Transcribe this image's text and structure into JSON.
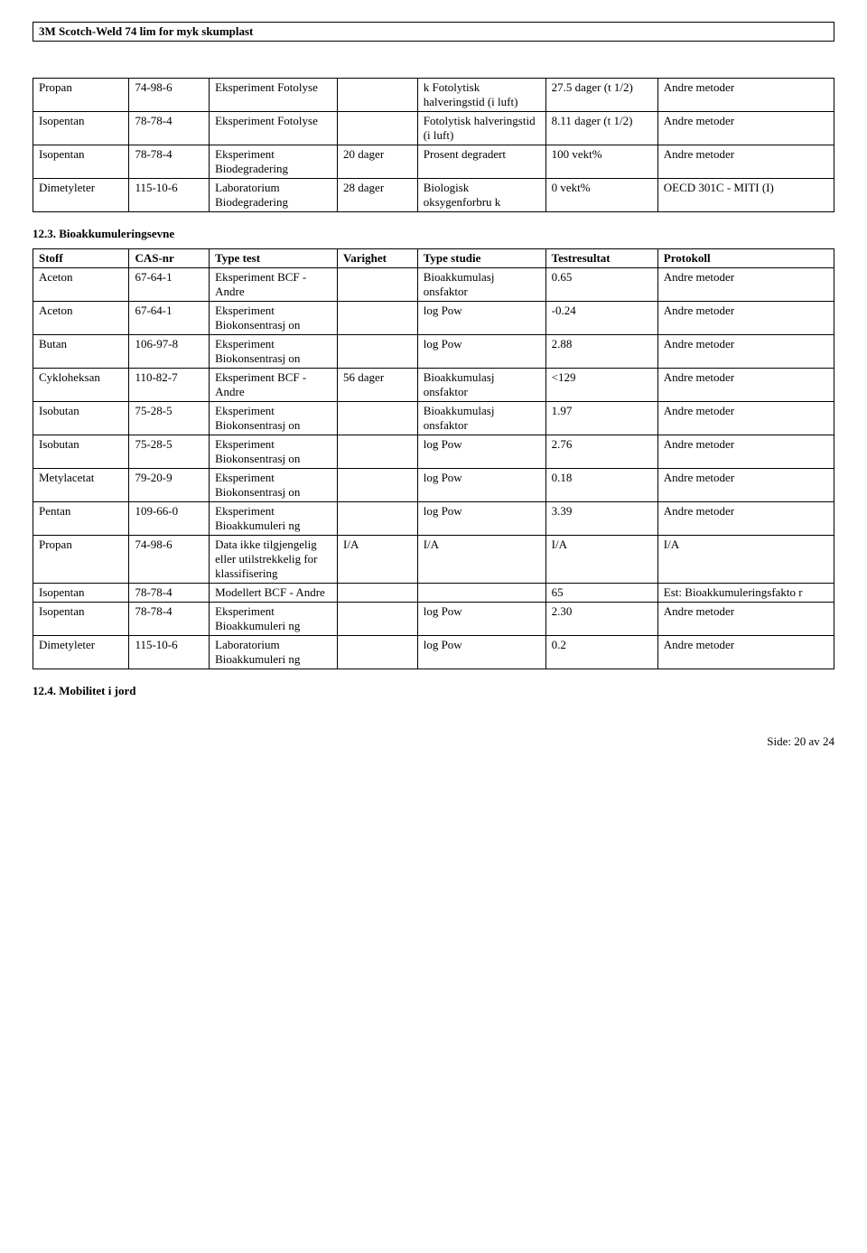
{
  "docTitle": "3M Scotch-Weld 74 lim for myk skumplast",
  "table1": {
    "rows": [
      {
        "stoff": "Propan",
        "cas": "74-98-6",
        "type": "Eksperiment Fotolyse",
        "varighet": "",
        "studie": "k\nFotolytisk halveringstid (i luft)",
        "result": "27.5 dager (t 1/2)",
        "protokoll": "Andre metoder"
      },
      {
        "stoff": "Isopentan",
        "cas": "78-78-4",
        "type": "Eksperiment Fotolyse",
        "varighet": "",
        "studie": "Fotolytisk halveringstid (i luft)",
        "result": "8.11 dager (t 1/2)",
        "protokoll": "Andre metoder"
      },
      {
        "stoff": "Isopentan",
        "cas": "78-78-4",
        "type": "Eksperiment Biodegradering",
        "varighet": "20 dager",
        "studie": "Prosent degradert",
        "result": "100 vekt%",
        "protokoll": "Andre metoder"
      },
      {
        "stoff": "Dimetyleter",
        "cas": "115-10-6",
        "type": "Laboratorium Biodegradering",
        "varighet": "28 dager",
        "studie": "Biologisk oksygenforbru k",
        "result": "0 vekt%",
        "protokoll": "OECD 301C - MITI (I)"
      }
    ]
  },
  "section123": "12.3. Bioakkumuleringsevne",
  "table2": {
    "headers": {
      "stoff": "Stoff",
      "cas": "CAS-nr",
      "type": "Type test",
      "varighet": "Varighet",
      "studie": "Type studie",
      "result": "Testresultat",
      "protokoll": "Protokoll"
    },
    "rows": [
      {
        "stoff": "Aceton",
        "cas": "67-64-1",
        "type": "Eksperiment BCF - Andre",
        "varighet": "",
        "studie": "Bioakkumulasj onsfaktor",
        "result": "0.65",
        "protokoll": "Andre metoder"
      },
      {
        "stoff": "Aceton",
        "cas": "67-64-1",
        "type": "Eksperiment Biokonsentrasj on",
        "varighet": "",
        "studie": "log Pow",
        "result": "-0.24",
        "protokoll": "Andre metoder"
      },
      {
        "stoff": "Butan",
        "cas": "106-97-8",
        "type": "Eksperiment Biokonsentrasj on",
        "varighet": "",
        "studie": "log Pow",
        "result": "2.88",
        "protokoll": "Andre metoder"
      },
      {
        "stoff": "Cykloheksan",
        "cas": "110-82-7",
        "type": "Eksperiment BCF - Andre",
        "varighet": "56 dager",
        "studie": "Bioakkumulasj onsfaktor",
        "result": "<129",
        "protokoll": "Andre metoder"
      },
      {
        "stoff": "Isobutan",
        "cas": "75-28-5",
        "type": "Eksperiment Biokonsentrasj on",
        "varighet": "",
        "studie": "Bioakkumulasj onsfaktor",
        "result": "1.97",
        "protokoll": "Andre metoder"
      },
      {
        "stoff": "Isobutan",
        "cas": "75-28-5",
        "type": "Eksperiment Biokonsentrasj on",
        "varighet": "",
        "studie": "log Pow",
        "result": "2.76",
        "protokoll": "Andre metoder"
      },
      {
        "stoff": "Metylacetat",
        "cas": "79-20-9",
        "type": "Eksperiment Biokonsentrasj on",
        "varighet": "",
        "studie": "log Pow",
        "result": "0.18",
        "protokoll": "Andre metoder"
      },
      {
        "stoff": "Pentan",
        "cas": "109-66-0",
        "type": "Eksperiment Bioakkumuleri ng",
        "varighet": "",
        "studie": "log Pow",
        "result": "3.39",
        "protokoll": "Andre metoder"
      },
      {
        "stoff": "Propan",
        "cas": "74-98-6",
        "type": " Data ikke tilgjengelig eller utilstrekkelig for klassifisering",
        "varighet": "I/A",
        "studie": "I/A",
        "result": "I/A",
        "protokoll": "I/A"
      },
      {
        "stoff": "Isopentan",
        "cas": "78-78-4",
        "type": "Modellert BCF - Andre",
        "varighet": "",
        "studie": "",
        "result": "65",
        "protokoll": "Est: Bioakkumuleringsfakto r"
      },
      {
        "stoff": "Isopentan",
        "cas": "78-78-4",
        "type": "Eksperiment Bioakkumuleri ng",
        "varighet": "",
        "studie": "log Pow",
        "result": "2.30",
        "protokoll": "Andre metoder"
      },
      {
        "stoff": "Dimetyleter",
        "cas": "115-10-6",
        "type": "Laboratorium Bioakkumuleri ng",
        "varighet": "",
        "studie": "log Pow",
        "result": "0.2",
        "protokoll": "Andre metoder"
      }
    ]
  },
  "section124": "12.4. Mobilitet i jord",
  "footer": "Side: 20 av  24"
}
